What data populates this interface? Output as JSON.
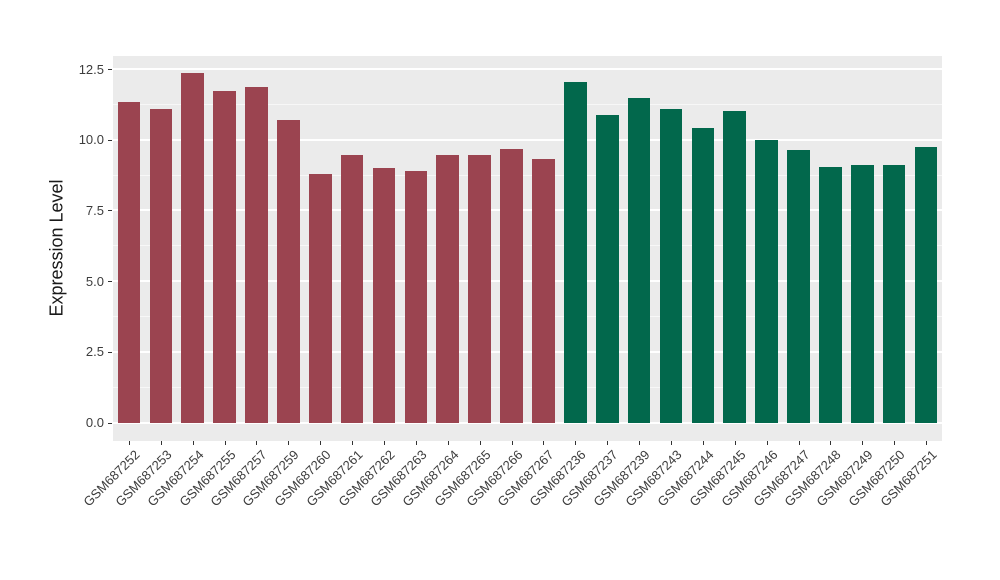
{
  "chart_data": {
    "type": "bar",
    "title": "",
    "xlabel": "",
    "ylabel": "Expression Level",
    "ylim": [
      -0.65,
      12.96
    ],
    "grid": true,
    "legend": false,
    "panel_background": "#EBEBEB",
    "gridline_color": "#FFFFFF",
    "yticks": {
      "values": [
        0,
        2.5,
        5,
        7.5,
        10,
        12.5
      ],
      "labels": [
        "0.0",
        "2.5",
        "5.0",
        "7.5",
        "10.0",
        "12.5"
      ]
    },
    "minor_gridlines": [
      1.25,
      3.75,
      6.25,
      8.75,
      11.25
    ],
    "categories": [
      "GSM687252",
      "GSM687253",
      "GSM687254",
      "GSM687255",
      "GSM687257",
      "GSM687259",
      "GSM687260",
      "GSM687261",
      "GSM687262",
      "GSM687263",
      "GSM687264",
      "GSM687265",
      "GSM687266",
      "GSM687267",
      "GSM687236",
      "GSM687237",
      "GSM687239",
      "GSM687243",
      "GSM687244",
      "GSM687245",
      "GSM687246",
      "GSM687247",
      "GSM687248",
      "GSM687249",
      "GSM687250",
      "GSM687251"
    ],
    "values": [
      11.32,
      11.08,
      12.36,
      11.72,
      11.88,
      10.68,
      8.8,
      9.46,
      8.99,
      8.9,
      9.46,
      9.47,
      9.69,
      9.31,
      12.03,
      10.88,
      11.48,
      11.08,
      10.41,
      11.03,
      9.98,
      9.65,
      9.05,
      9.09,
      9.09,
      9.76
    ],
    "bar_groups": [
      0,
      0,
      0,
      0,
      0,
      0,
      0,
      0,
      0,
      0,
      0,
      0,
      0,
      0,
      1,
      1,
      1,
      1,
      1,
      1,
      1,
      1,
      1,
      1,
      1,
      1
    ],
    "group_colors": [
      "#9B4450",
      "#02684C"
    ]
  }
}
